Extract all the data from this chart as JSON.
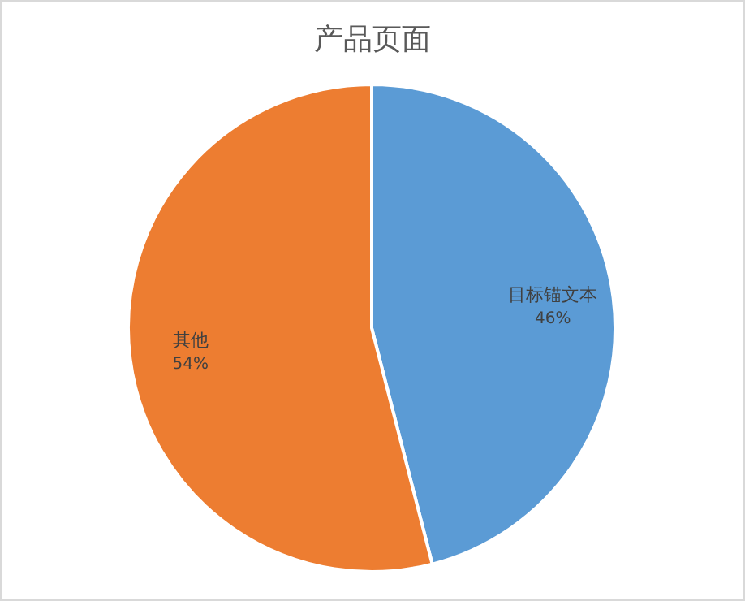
{
  "chart_data": {
    "type": "pie",
    "title": "产品页面",
    "categories": [
      "目标锚文本",
      "其他"
    ],
    "values": [
      46,
      54
    ],
    "colors": [
      "#5b9bd5",
      "#ed7d31"
    ],
    "value_labels": [
      "46%",
      "54%"
    ],
    "legend": false
  }
}
